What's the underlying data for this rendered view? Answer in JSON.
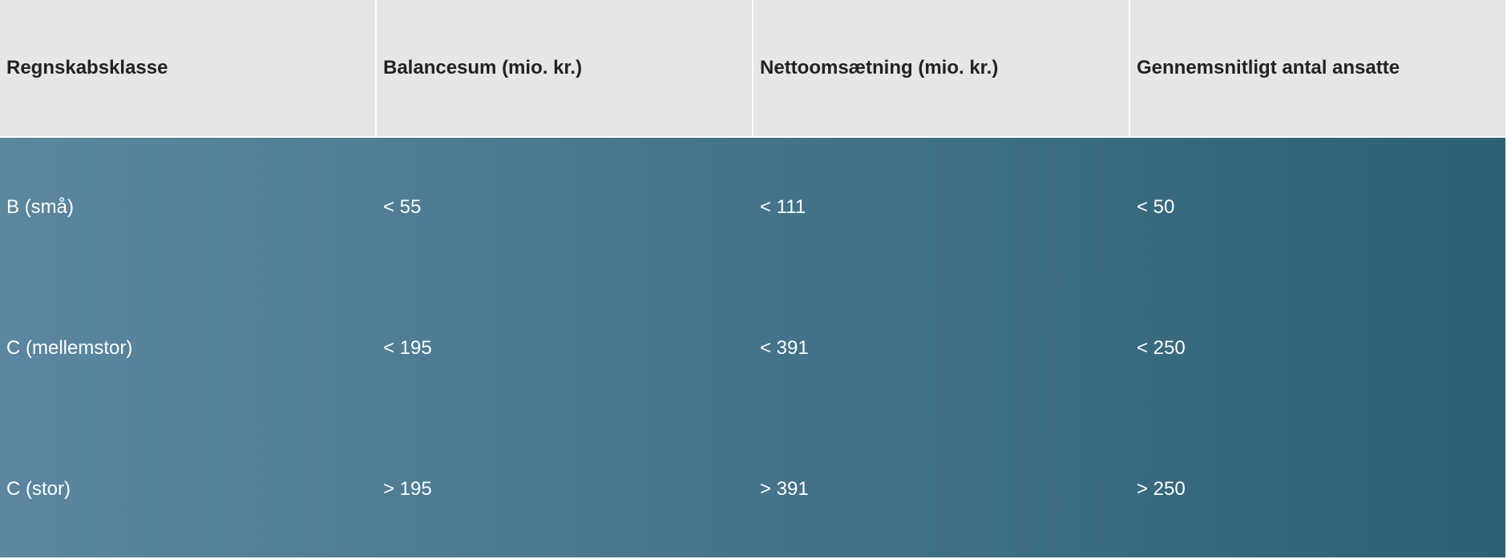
{
  "table": {
    "header": [
      "Regnskabsklasse",
      "Balancesum (mio. kr.)",
      "Nettoomsætning (mio. kr.)",
      "Gennemsnitligt antal ansatte"
    ],
    "rows": [
      [
        "B (små)",
        "< 55",
        "< 111",
        "< 50"
      ],
      [
        "C (mellemstor)",
        "< 195",
        "< 391",
        "< 250"
      ],
      [
        "C (stor)",
        "> 195",
        "> 391",
        "> 250"
      ]
    ]
  }
}
